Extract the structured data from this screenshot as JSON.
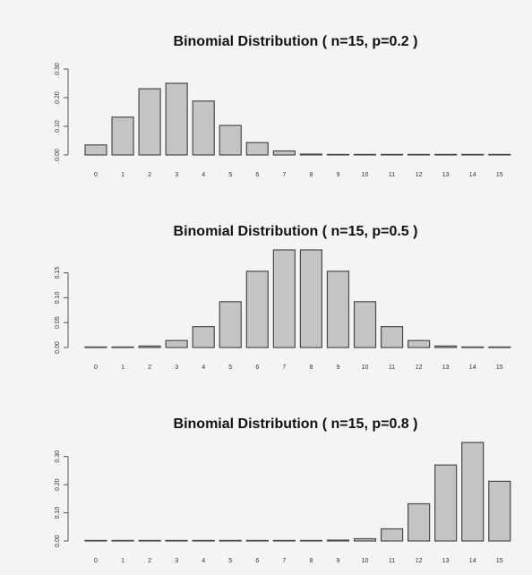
{
  "chart_data": [
    {
      "type": "bar",
      "title": "Binomial Distribution ( n=15, p=0.2 )",
      "categories": [
        "0",
        "1",
        "2",
        "3",
        "4",
        "5",
        "6",
        "7",
        "8",
        "9",
        "10",
        "11",
        "12",
        "13",
        "14",
        "15"
      ],
      "values": [
        0.035,
        0.132,
        0.231,
        0.25,
        0.188,
        0.103,
        0.043,
        0.014,
        0.003,
        0.001,
        0.0,
        0.0,
        0.0,
        0.0,
        0.0,
        0.0
      ],
      "ylim": [
        0,
        0.35
      ],
      "yticks": [
        0.0,
        0.1,
        0.2,
        0.3
      ],
      "ytick_labels": [
        "0.00",
        "0.10",
        "0.20",
        "0.30"
      ],
      "xlabel": "",
      "ylabel": ""
    },
    {
      "type": "bar",
      "title": "Binomial Distribution ( n=15, p=0.5 )",
      "categories": [
        "0",
        "1",
        "2",
        "3",
        "4",
        "5",
        "6",
        "7",
        "8",
        "9",
        "10",
        "11",
        "12",
        "13",
        "14",
        "15"
      ],
      "values": [
        0.0,
        0.0,
        0.003,
        0.014,
        0.042,
        0.092,
        0.153,
        0.196,
        0.196,
        0.153,
        0.092,
        0.042,
        0.014,
        0.003,
        0.0,
        0.0
      ],
      "ylim": [
        0,
        0.196
      ],
      "yticks": [
        0.0,
        0.05,
        0.1,
        0.15
      ],
      "ytick_labels": [
        "0.00",
        "0.05",
        "0.10",
        "0.15"
      ],
      "xlabel": "",
      "ylabel": ""
    },
    {
      "type": "bar",
      "title": "Binomial Distribution ( n=15, p=0.8 )",
      "categories": [
        "0",
        "1",
        "2",
        "3",
        "4",
        "5",
        "6",
        "7",
        "8",
        "9",
        "10",
        "11",
        "12",
        "13",
        "14",
        "15"
      ],
      "values": [
        0.0,
        0.0,
        0.0,
        0.0,
        0.0,
        0.0,
        0.0,
        0.0,
        0.0,
        0.003,
        0.008,
        0.043,
        0.132,
        0.27,
        0.35,
        0.212
      ],
      "ylim": [
        0,
        0.35
      ],
      "yticks": [
        0.0,
        0.1,
        0.2,
        0.3
      ],
      "ytick_labels": [
        "0.00",
        "0.10",
        "0.20",
        "0.30"
      ],
      "xlabel": "",
      "ylabel": ""
    }
  ]
}
